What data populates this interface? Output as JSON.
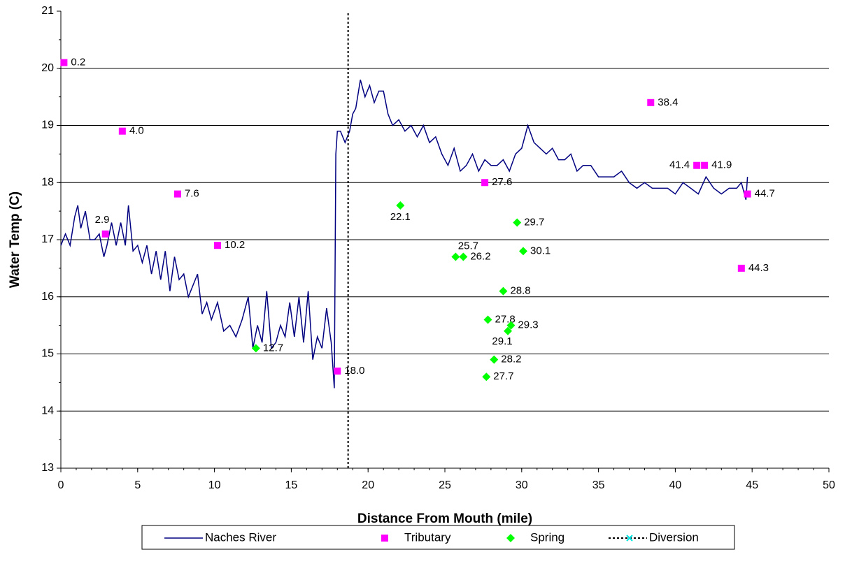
{
  "chart_data": {
    "type": "scatter",
    "x_label": "Distance From Mouth (mile)",
    "y_label": "Water Temp (C)",
    "xlim": [
      0,
      50
    ],
    "xticks": [
      0,
      5,
      10,
      15,
      20,
      25,
      30,
      35,
      40,
      45,
      50
    ],
    "ylim": [
      13,
      21
    ],
    "yticks": [
      13,
      14,
      15,
      16,
      17,
      18,
      19,
      20,
      21
    ],
    "x_minor_step": 1,
    "y_minor_step": 0.5,
    "grid": true,
    "legend": "bottom",
    "series": [
      {
        "name": "Naches River",
        "type": "line",
        "color": "#000080",
        "x": [
          0,
          0.3,
          0.6,
          0.9,
          1.1,
          1.3,
          1.6,
          1.9,
          2.2,
          2.5,
          2.8,
          3.0,
          3.3,
          3.6,
          3.9,
          4.2,
          4.4,
          4.7,
          5.0,
          5.3,
          5.6,
          5.9,
          6.2,
          6.5,
          6.8,
          7.1,
          7.4,
          7.7,
          8.0,
          8.3,
          8.6,
          8.9,
          9.2,
          9.5,
          9.8,
          10.2,
          10.6,
          11.0,
          11.4,
          11.8,
          12.2,
          12.5,
          12.8,
          13.1,
          13.4,
          13.7,
          14.0,
          14.3,
          14.6,
          14.9,
          15.2,
          15.5,
          15.8,
          16.1,
          16.4,
          16.7,
          17.0,
          17.3,
          17.6,
          17.8,
          17.9,
          18.0,
          18.2,
          18.5,
          18.8,
          19.0,
          19.2,
          19.5,
          19.8,
          20.1,
          20.4,
          20.7,
          21.0,
          21.3,
          21.6,
          22.0,
          22.4,
          22.8,
          23.2,
          23.6,
          24.0,
          24.4,
          24.8,
          25.2,
          25.6,
          26.0,
          26.4,
          26.8,
          27.2,
          27.6,
          28.0,
          28.4,
          28.8,
          29.2,
          29.6,
          30.0,
          30.4,
          30.8,
          31.2,
          31.6,
          32.0,
          32.4,
          32.8,
          33.2,
          33.6,
          34.0,
          34.5,
          35.0,
          35.5,
          36.0,
          36.5,
          37.0,
          37.5,
          38.0,
          38.5,
          39.0,
          39.5,
          40.0,
          40.5,
          41.0,
          41.5,
          42.0,
          42.5,
          43.0,
          43.5,
          44.0,
          44.3,
          44.6,
          44.7
        ],
        "values": [
          16.9,
          17.1,
          16.9,
          17.4,
          17.6,
          17.2,
          17.5,
          17.0,
          17.0,
          17.1,
          16.7,
          16.9,
          17.3,
          16.9,
          17.3,
          16.9,
          17.6,
          16.8,
          16.9,
          16.6,
          16.9,
          16.4,
          16.8,
          16.3,
          16.8,
          16.1,
          16.7,
          16.3,
          16.4,
          16.0,
          16.2,
          16.4,
          15.7,
          15.9,
          15.6,
          15.9,
          15.4,
          15.5,
          15.3,
          15.6,
          16.0,
          15.1,
          15.5,
          15.2,
          16.1,
          15.1,
          15.2,
          15.5,
          15.3,
          15.9,
          15.3,
          16.0,
          15.2,
          16.1,
          14.9,
          15.3,
          15.1,
          15.8,
          15.2,
          14.4,
          18.5,
          18.9,
          18.9,
          18.7,
          18.9,
          19.2,
          19.3,
          19.8,
          19.5,
          19.7,
          19.4,
          19.6,
          19.6,
          19.2,
          19.0,
          19.1,
          18.9,
          19.0,
          18.8,
          19.0,
          18.7,
          18.8,
          18.5,
          18.3,
          18.6,
          18.2,
          18.3,
          18.5,
          18.2,
          18.4,
          18.3,
          18.3,
          18.4,
          18.2,
          18.5,
          18.6,
          19.0,
          18.7,
          18.6,
          18.5,
          18.6,
          18.4,
          18.4,
          18.5,
          18.2,
          18.3,
          18.3,
          18.1,
          18.1,
          18.1,
          18.2,
          18.0,
          17.9,
          18.0,
          17.9,
          17.9,
          17.9,
          17.8,
          18.0,
          17.9,
          17.8,
          18.1,
          17.9,
          17.8,
          17.9,
          17.9,
          18.0,
          17.7,
          18.1
        ]
      },
      {
        "name": "Tributary",
        "type": "scatter",
        "marker": "square",
        "color": "#ff00ff",
        "x": [
          0.2,
          2.9,
          4.0,
          7.6,
          10.2,
          18.0,
          27.6,
          38.4,
          41.4,
          41.9,
          44.3,
          44.7
        ],
        "values": [
          20.1,
          17.1,
          18.9,
          17.8,
          16.9,
          14.7,
          18.0,
          19.4,
          18.3,
          18.3,
          16.5,
          17.8
        ],
        "point_labels": [
          "0.2",
          "2.9",
          "4.0",
          "7.6",
          "10.2",
          "18.0",
          "27.6",
          "38.4",
          "41.4",
          "41.9",
          "44.3",
          "44.7"
        ]
      },
      {
        "name": "Spring",
        "type": "scatter",
        "marker": "diamond",
        "color": "#00ff00",
        "x": [
          12.7,
          22.1,
          25.7,
          26.2,
          27.7,
          27.8,
          28.2,
          28.8,
          29.1,
          29.3,
          29.7,
          30.1
        ],
        "values": [
          15.1,
          17.6,
          16.7,
          16.7,
          14.6,
          15.6,
          14.9,
          16.1,
          15.4,
          15.5,
          17.3,
          16.8
        ],
        "point_labels": [
          "12.7",
          "22.1",
          "25.7",
          "26.2",
          "27.7",
          "27.8",
          "28.2",
          "28.8",
          "29.1",
          "29.3",
          "29.7",
          "30.1"
        ]
      },
      {
        "name": "Diversion",
        "type": "vline",
        "color": "#000000",
        "marker_color": "#00e5e5",
        "x": [
          18.7,
          18.7
        ],
        "values": [
          13,
          21
        ]
      }
    ]
  }
}
